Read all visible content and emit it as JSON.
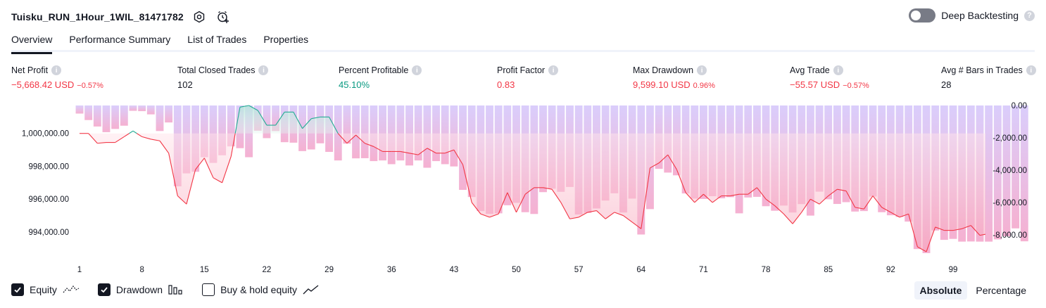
{
  "header": {
    "strategy_name": "Tuisku_RUN_1Hour_1WIL_81471782",
    "icons": [
      "settings-icon",
      "alert-add-icon"
    ]
  },
  "deep_backtesting": {
    "label": "Deep Backtesting",
    "enabled": false,
    "help": "?"
  },
  "tabs": [
    {
      "label": "Overview",
      "active": true
    },
    {
      "label": "Performance Summary",
      "active": false
    },
    {
      "label": "List of Trades",
      "active": false
    },
    {
      "label": "Properties",
      "active": false
    }
  ],
  "metrics": {
    "net_profit": {
      "label": "Net Profit",
      "value": "−5,668.42 USD",
      "pct": "−0.57%"
    },
    "total_closed_trades": {
      "label": "Total Closed Trades",
      "value": "102"
    },
    "percent_profitable": {
      "label": "Percent Profitable",
      "value": "45.10%"
    },
    "profit_factor": {
      "label": "Profit Factor",
      "value": "0.83"
    },
    "max_drawdown": {
      "label": "Max Drawdown",
      "value": "9,599.10 USD",
      "pct": "0.96%"
    },
    "avg_trade": {
      "label": "Avg Trade",
      "value": "−55.57 USD",
      "pct": "−0.57%"
    },
    "avg_bars": {
      "label": "Avg # Bars in Trades",
      "value": "28"
    },
    "info_glyph": "i"
  },
  "chart_data": {
    "type": "line",
    "left_axis": {
      "ticks": [
        1000000,
        998000,
        996000,
        994000
      ],
      "tick_labels": [
        "1,000,000.00",
        "998,000.00",
        "996,000.00",
        "994,000.00"
      ],
      "ylim": [
        992500,
        1001700
      ]
    },
    "right_axis": {
      "ticks": [
        0,
        -2000,
        -4000,
        -6000,
        -8000
      ],
      "tick_labels": [
        "0.00",
        "-2,000.00",
        "-4,000.00",
        "-6,000.00",
        "-8,000.00"
      ],
      "ylim": [
        -9350,
        0
      ]
    },
    "x_ticks": [
      1,
      8,
      15,
      22,
      29,
      36,
      43,
      50,
      57,
      64,
      71,
      78,
      85,
      92,
      99
    ],
    "x_tick_labels": [
      "1",
      "8",
      "15",
      "22",
      "29",
      "36",
      "43",
      "50",
      "57",
      "64",
      "71",
      "78",
      "85",
      "92",
      "99"
    ],
    "xlim": [
      1,
      102
    ],
    "baseline": 1000000,
    "series": [
      {
        "name": "Equity",
        "values": [
          1000000,
          1000000,
          999400,
          999450,
          999450,
          999800,
          1000150,
          999800,
          999650,
          999550,
          998800,
          996200,
          995700,
          997800,
          998500,
          997300,
          997000,
          998600,
          1001600,
          1001700,
          1001400,
          1000500,
          1000500,
          1001300,
          1001300,
          1000300,
          1000900,
          1001000,
          1001000,
          1000000,
          999400,
          999900,
          999400,
          999200,
          998900,
          998900,
          998900,
          998800,
          998700,
          999100,
          998800,
          998800,
          999000,
          998100,
          995800,
          995100,
          994900,
          995100,
          996400,
          995200,
          996300,
          996700,
          996700,
          996600,
          995800,
          994800,
          994900,
          995200,
          995300,
          994800,
          995200,
          995000,
          994600,
          994200,
          997900,
          998200,
          998700,
          997800,
          996400,
          995800,
          996300,
          995800,
          996200,
          996200,
          996300,
          996300,
          996700,
          996000,
          995600,
          995100,
          994500,
          995200,
          996000,
          995700,
          996200,
          996600,
          996500,
          995500,
          995400,
          996200,
          995500,
          995200,
          994900,
          995100,
          993100,
          992800,
          994300,
          994100,
          994100,
          994200,
          994400,
          993800,
          993900,
          994500,
          994400
        ]
      },
      {
        "name": "Drawdown",
        "values": [
          -500,
          -900,
          -1300,
          -1650,
          -1450,
          -1250,
          -330,
          -350,
          -550,
          -1580,
          -1050,
          -5000,
          -4200,
          -4100,
          -3200,
          -3550,
          -3080,
          -2530,
          -2640,
          -3200,
          -1560,
          -2020,
          -1580,
          -2270,
          -2300,
          -2820,
          -2720,
          -2340,
          -2870,
          -3400,
          -2360,
          -3270,
          -3260,
          -3440,
          -3400,
          -3630,
          -3400,
          -3710,
          -3400,
          -3850,
          -3440,
          -3630,
          -3770,
          -5220,
          -5660,
          -6530,
          -6700,
          -6670,
          -6170,
          -6020,
          -6600,
          -6710,
          -5360,
          -5150,
          -5340,
          -5040,
          -6740,
          -6640,
          -6370,
          -5880,
          -5430,
          -6620,
          -5760,
          -7980,
          -6410,
          -3920,
          -4150,
          -4320,
          -5440,
          -5760,
          -5780,
          -5610,
          -5740,
          -5670,
          -6670,
          -5690,
          -5650,
          -6230,
          -6510,
          -6190,
          -6620,
          -6100,
          -6810,
          -5330,
          -5800,
          -6090,
          -5980,
          -6560,
          -6530,
          -5630,
          -6600,
          -6790,
          -6890,
          -7180,
          -8880,
          -9130,
          -7730,
          -8310,
          -8250,
          -8420,
          -8410,
          -8420,
          -8420,
          -8280,
          -8090,
          -7600,
          -8400
        ]
      }
    ]
  },
  "legend": {
    "items": [
      {
        "label": "Equity",
        "checked": true,
        "icon": "equity-line-icon"
      },
      {
        "label": "Drawdown",
        "checked": true,
        "icon": "drawdown-bars-icon"
      },
      {
        "label": "Buy & hold equity",
        "checked": false,
        "icon": "buy-hold-line-icon"
      }
    ]
  },
  "mode": {
    "options": [
      "Absolute",
      "Percentage"
    ],
    "selected": "Absolute"
  },
  "colors": {
    "negative": "#f23645",
    "positive": "#089981",
    "equity_loss_line": "#f23645",
    "equity_gain_line": "#22ab94",
    "drawdown_bar_top": "#d1c4f9",
    "drawdown_bar_bottom": "#f7a6c8"
  }
}
